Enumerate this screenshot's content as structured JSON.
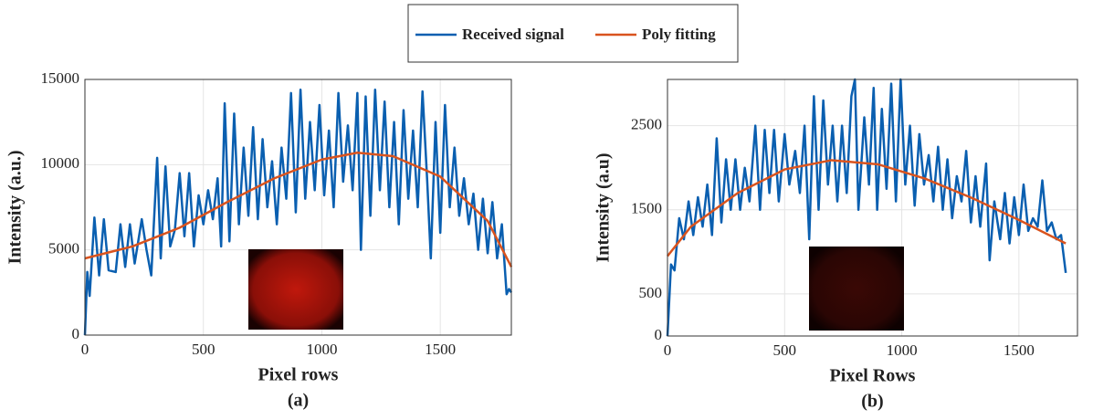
{
  "chart_data": [
    {
      "type": "line",
      "x_label": "Pixel rows",
      "y_label": "Intensity (a.u.)",
      "caption": "(a)",
      "xlim": [
        0,
        1800
      ],
      "xticks": [
        0,
        500,
        1000,
        1500
      ],
      "ylim": [
        0,
        15000
      ],
      "yticks": [
        0,
        5000,
        10000,
        15000
      ],
      "grid": true,
      "series": [
        {
          "name": "Received signal",
          "color": "#0a5fb0",
          "x": [
            0,
            10,
            20,
            40,
            60,
            80,
            100,
            130,
            150,
            170,
            190,
            210,
            240,
            260,
            280,
            305,
            320,
            340,
            360,
            380,
            400,
            420,
            440,
            460,
            480,
            500,
            520,
            540,
            560,
            575,
            590,
            610,
            630,
            650,
            670,
            690,
            710,
            730,
            750,
            770,
            790,
            810,
            830,
            850,
            870,
            890,
            910,
            930,
            950,
            970,
            990,
            1010,
            1030,
            1050,
            1070,
            1090,
            1110,
            1130,
            1150,
            1165,
            1185,
            1205,
            1225,
            1245,
            1265,
            1285,
            1305,
            1325,
            1345,
            1365,
            1385,
            1405,
            1425,
            1445,
            1460,
            1480,
            1500,
            1520,
            1540,
            1560,
            1580,
            1600,
            1620,
            1640,
            1660,
            1680,
            1700,
            1720,
            1740,
            1760,
            1780,
            1790,
            1800
          ],
          "values": [
            0,
            3700,
            2300,
            6900,
            3500,
            6800,
            3800,
            3700,
            6500,
            4000,
            6500,
            4200,
            6800,
            5000,
            3500,
            10400,
            4500,
            9900,
            5200,
            6200,
            9500,
            5800,
            9500,
            5200,
            8200,
            6500,
            8500,
            6800,
            9200,
            5200,
            13600,
            5500,
            13000,
            6500,
            11000,
            7000,
            12200,
            6800,
            11500,
            7500,
            10200,
            6500,
            11000,
            8000,
            14200,
            7200,
            14400,
            8000,
            12500,
            8500,
            13500,
            8200,
            12000,
            7500,
            14200,
            9000,
            12300,
            8500,
            14200,
            5000,
            14000,
            7000,
            14400,
            8500,
            13700,
            7500,
            12500,
            6500,
            13200,
            8000,
            12000,
            7500,
            14300,
            9000,
            4500,
            12500,
            6000,
            13500,
            7500,
            11000,
            7000,
            9200,
            6500,
            8300,
            5000,
            8000,
            4800,
            7800,
            4500,
            6500,
            2400,
            2700,
            2500
          ]
        },
        {
          "name": "Poly fitting",
          "color": "#d9531e",
          "x": [
            0,
            200,
            400,
            600,
            800,
            1000,
            1150,
            1300,
            1500,
            1700,
            1800
          ],
          "values": [
            4500,
            5200,
            6300,
            7800,
            9200,
            10300,
            10700,
            10500,
            9300,
            6700,
            4000
          ]
        }
      ]
    },
    {
      "type": "line",
      "x_label": "Pixel Rows",
      "y_label": "Intensity (a.u)",
      "caption": "(b)",
      "xlim": [
        0,
        1750
      ],
      "xticks": [
        0,
        500,
        1000,
        1500
      ],
      "ylim": [
        0,
        3050
      ],
      "yticks": [
        0,
        500,
        1500,
        2500
      ],
      "grid": true,
      "series": [
        {
          "color": "#0a5fb0",
          "x": [
            0,
            15,
            30,
            50,
            70,
            90,
            110,
            130,
            150,
            170,
            190,
            210,
            230,
            250,
            270,
            290,
            310,
            330,
            350,
            375,
            395,
            415,
            435,
            455,
            475,
            500,
            520,
            545,
            565,
            585,
            605,
            625,
            645,
            665,
            685,
            705,
            725,
            745,
            765,
            785,
            800,
            815,
            840,
            860,
            880,
            895,
            915,
            935,
            955,
            975,
            995,
            1015,
            1035,
            1055,
            1075,
            1095,
            1115,
            1135,
            1155,
            1175,
            1195,
            1215,
            1235,
            1255,
            1275,
            1295,
            1315,
            1335,
            1360,
            1375,
            1395,
            1420,
            1440,
            1460,
            1480,
            1500,
            1520,
            1540,
            1560,
            1580,
            1600,
            1620,
            1640,
            1660,
            1680,
            1700
          ],
          "values": [
            0,
            850,
            780,
            1400,
            1150,
            1600,
            1200,
            1650,
            1300,
            1800,
            1200,
            2350,
            1350,
            2100,
            1500,
            2100,
            1500,
            2000,
            1600,
            2500,
            1500,
            2450,
            1700,
            2450,
            1600,
            2400,
            1800,
            2200,
            1700,
            2500,
            1150,
            2850,
            1500,
            2800,
            1800,
            2500,
            1600,
            2500,
            1700,
            2850,
            3050,
            1500,
            2600,
            1800,
            2950,
            1500,
            2700,
            1750,
            3000,
            1600,
            3050,
            1800,
            2500,
            1550,
            2400,
            1800,
            2150,
            1600,
            2250,
            1500,
            2100,
            1400,
            1900,
            1600,
            2200,
            1350,
            1900,
            1300,
            2050,
            900,
            1600,
            1150,
            1700,
            1100,
            1650,
            1200,
            1800,
            1250,
            1400,
            1300,
            1850,
            1250,
            1350,
            1150,
            1200,
            750
          ]
        },
        {
          "color": "#d9531e",
          "x": [
            0,
            100,
            300,
            500,
            700,
            900,
            1100,
            1300,
            1500,
            1700
          ],
          "values": [
            950,
            1300,
            1700,
            1980,
            2090,
            2040,
            1870,
            1640,
            1380,
            1100
          ]
        }
      ]
    }
  ]
}
